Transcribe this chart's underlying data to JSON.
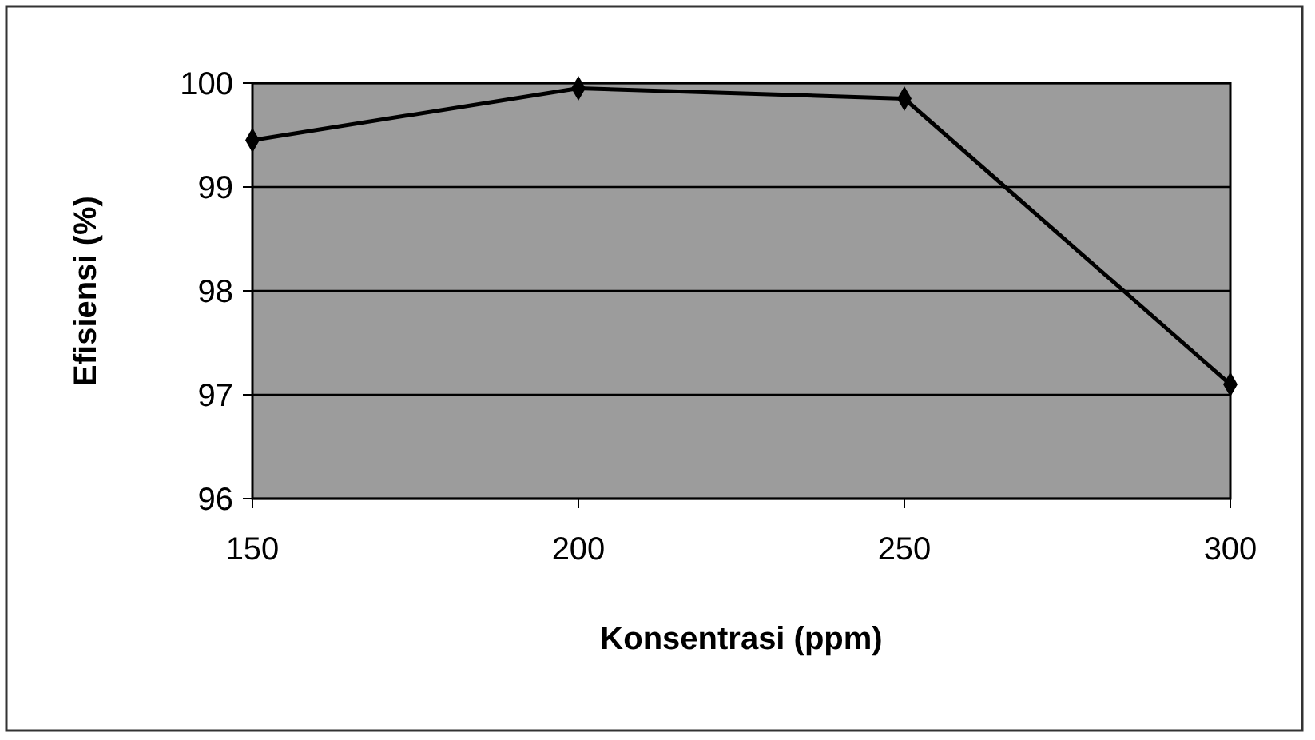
{
  "chart_data": {
    "type": "line",
    "xlabel": "Konsentrasi (ppm)",
    "ylabel": "Efisiensi (%)",
    "x": [
      150,
      200,
      250,
      300
    ],
    "series": [
      {
        "color": "#000000",
        "values": [
          99.45,
          99.95,
          99.85,
          97.1
        ]
      }
    ],
    "xlim": [
      150,
      300
    ],
    "xticks": [
      150,
      200,
      250,
      300
    ],
    "ylim": [
      96,
      100
    ],
    "yticks": [
      96,
      97,
      98,
      99,
      100
    ],
    "grid": "y",
    "marker": "diamond",
    "line_style": "solid"
  }
}
